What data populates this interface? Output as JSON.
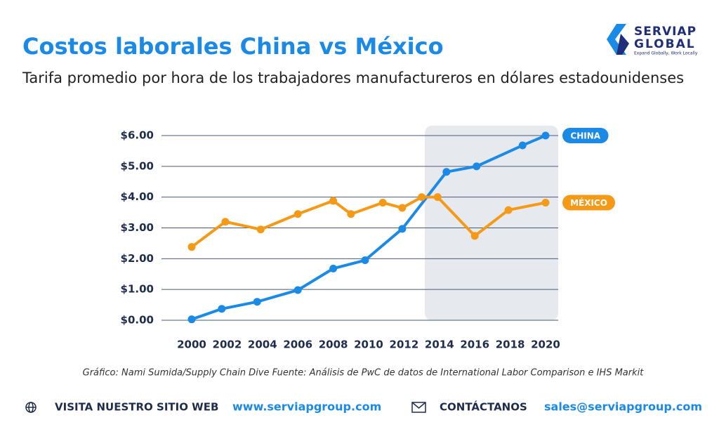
{
  "header": {
    "logo_top": "SERVIAP",
    "logo_bottom": "GLOBAL",
    "logo_tagline": "Expand Globally, Work Locally"
  },
  "chart_data": {
    "type": "line",
    "title": "Costos laborales China vs México",
    "subtitle": "Tarifa promedio por hora de los trabajadores manufactureros en dólares estadounidenses",
    "source": "Gráfico: Nami Sumida/Supply Chain Dive Fuente: Análisis de PwC de datos de International Labor Comparison e IHS Markit",
    "series": [
      {
        "name": "CHINA",
        "color": "#1a8ae6",
        "x": [
          2000,
          2001.7,
          2003.7,
          2006,
          2008,
          2009.8,
          2011.9,
          2014.4,
          2016.1,
          2018.7,
          2020
        ],
        "values": [
          0.03,
          0.37,
          0.6,
          0.98,
          1.68,
          1.95,
          2.97,
          4.82,
          5.0,
          5.68,
          6.0
        ]
      },
      {
        "name": "MÉXICO",
        "color": "#f59a17",
        "x": [
          2000,
          2001.9,
          2003.9,
          2006,
          2008,
          2009,
          2010.8,
          2011.9,
          2013,
          2013.9,
          2016,
          2017.9,
          2020
        ],
        "values": [
          2.38,
          3.2,
          2.95,
          3.45,
          3.88,
          3.45,
          3.82,
          3.65,
          4.0,
          4.0,
          2.74,
          3.58,
          3.82
        ]
      }
    ],
    "xlim": [
      2000,
      2020
    ],
    "xticks": [
      2000,
      2002,
      2004,
      2006,
      2008,
      2010,
      2012,
      2014,
      2016,
      2018,
      2020
    ],
    "ylim": [
      0,
      6
    ],
    "yticks": [
      {
        "value": 0,
        "label": "$0.00"
      },
      {
        "value": 1,
        "label": "$1.00"
      },
      {
        "value": 2,
        "label": "$2.00"
      },
      {
        "value": 3,
        "label": "$3.00"
      },
      {
        "value": 4,
        "label": "$4.00"
      },
      {
        "value": 5,
        "label": "$5.00"
      },
      {
        "value": 6,
        "label": "$6.00"
      }
    ],
    "grid": true
  },
  "footer": {
    "web_label": "VISITA NUESTRO SITIO WEB",
    "web_url": "www.serviapgroup.com",
    "contact_label": "CONTÁCTANOS",
    "email": "sales@serviapgroup.com"
  }
}
